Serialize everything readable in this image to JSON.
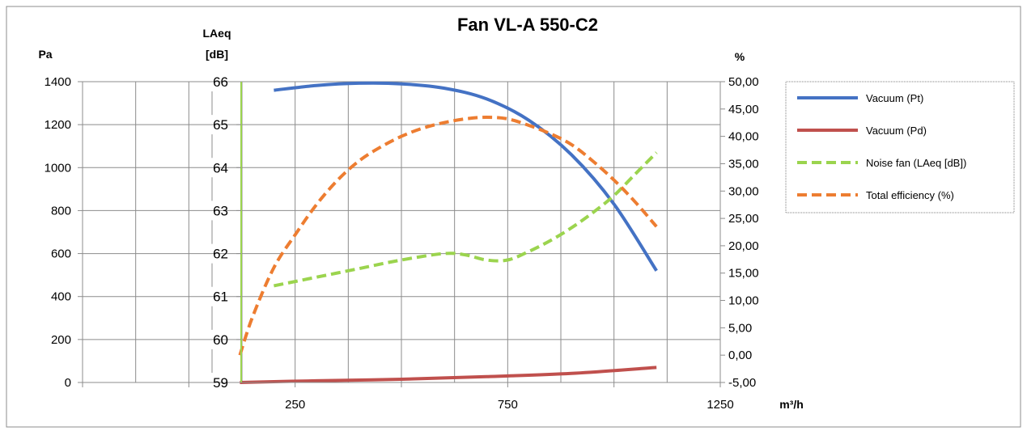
{
  "chart_data": {
    "type": "line",
    "title": "Fan VL-A 550-C2",
    "xlabel": "m³/h",
    "x_ticks": [
      "250",
      "750",
      "1250"
    ],
    "xlim": [
      -250,
      1250
    ],
    "axes": {
      "left": {
        "label": "Pa",
        "lim": [
          0,
          1400
        ],
        "ticks": [
          "0",
          "200",
          "400",
          "600",
          "800",
          "1000",
          "1200",
          "1400"
        ]
      },
      "left2": {
        "label_line1": "LAeq",
        "label_line2": "[dB]",
        "lim": [
          59,
          66
        ],
        "ticks": [
          "59",
          "60",
          "61",
          "62",
          "63",
          "64",
          "65",
          "66"
        ]
      },
      "right": {
        "label": "%",
        "lim": [
          -5,
          50
        ],
        "ticks": [
          "-5,00",
          "0,00",
          "5,00",
          "10,00",
          "15,00",
          "20,00",
          "25,00",
          "30,00",
          "35,00",
          "40,00",
          "45,00",
          "50,00"
        ]
      }
    },
    "grid": true,
    "legend_position": "top-right",
    "series": [
      {
        "name": "Vacuum (Pt)",
        "axis": "left",
        "color": "#4472C4",
        "dash": "solid",
        "x": [
          200,
          300,
          400,
          500,
          600,
          700,
          800,
          900,
          1000,
          1100
        ],
        "y": [
          1360,
          1382,
          1393,
          1390,
          1370,
          1320,
          1220,
          1060,
          830,
          520
        ]
      },
      {
        "name": "Vacuum (Pd)",
        "axis": "left",
        "color": "#C0504D",
        "dash": "solid",
        "x": [
          120,
          300,
          500,
          700,
          900,
          1100
        ],
        "y": [
          0,
          8,
          15,
          27,
          42,
          70
        ]
      },
      {
        "name": "Noise fan (LAeq [dB])",
        "axis": "left2",
        "color": "#9BD44E",
        "dash": "dashed",
        "x": [
          200,
          300,
          400,
          500,
          600,
          650,
          700,
          750,
          800,
          850,
          900,
          950,
          1000,
          1050,
          1100
        ],
        "y": [
          61.25,
          61.45,
          61.65,
          61.85,
          62.0,
          61.97,
          61.85,
          61.85,
          62.05,
          62.3,
          62.6,
          62.95,
          63.35,
          63.85,
          64.35
        ]
      },
      {
        "name": "Total efficiency (%)",
        "axis": "right",
        "color": "#ED7D31",
        "dash": "dashed",
        "x": [
          120,
          150,
          200,
          250,
          300,
          350,
          400,
          450,
          500,
          550,
          600,
          650,
          700,
          750,
          800,
          850,
          900,
          950,
          1000,
          1050,
          1100
        ],
        "y": [
          0.0,
          7.0,
          16.0,
          22.0,
          27.5,
          32.0,
          35.5,
          38.0,
          40.0,
          41.5,
          42.5,
          43.2,
          43.5,
          43.2,
          42.0,
          40.5,
          38.5,
          35.5,
          32.0,
          28.0,
          23.5
        ]
      }
    ],
    "legend": [
      "Vacuum (Pt)",
      "Vacuum (Pd)",
      "Noise fan (LAeq [dB])",
      "Total efficiency (%)"
    ]
  }
}
